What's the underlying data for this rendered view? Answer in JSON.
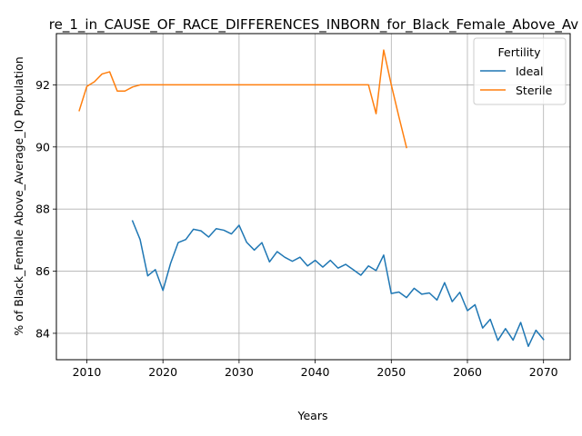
{
  "chart_data": {
    "type": "line",
    "title": "re_1_in_CAUSE_OF_RACE_DIFFERENCES_INBORN_for_Black_Female_Above_Av",
    "xlabel": "Years",
    "ylabel": "% of Black_Female Above_Average_IQ Population",
    "xlim": [
      2006,
      2073.5
    ],
    "ylim": [
      83.15,
      93.65
    ],
    "x_ticks": [
      2010,
      2020,
      2030,
      2040,
      2050,
      2060,
      2070
    ],
    "y_ticks": [
      84,
      86,
      88,
      90,
      92
    ],
    "grid": true,
    "legend": {
      "title": "Fertility",
      "placement": "top-right"
    },
    "series": [
      {
        "name": "Ideal",
        "color": "#1f77b4",
        "x": [
          2016,
          2017,
          2018,
          2019,
          2020,
          2021,
          2022,
          2023,
          2024,
          2025,
          2026,
          2027,
          2028,
          2029,
          2030,
          2031,
          2032,
          2033,
          2034,
          2035,
          2036,
          2037,
          2038,
          2039,
          2040,
          2041,
          2042,
          2043,
          2044,
          2045,
          2046,
          2047,
          2048,
          2049,
          2050,
          2051,
          2052,
          2053,
          2054,
          2055,
          2056,
          2057,
          2058,
          2059,
          2060,
          2061,
          2062,
          2063,
          2064,
          2065,
          2066,
          2067,
          2068,
          2069,
          2070
        ],
        "y": [
          87.62,
          87.02,
          85.85,
          86.05,
          85.38,
          86.25,
          86.92,
          87.02,
          87.35,
          87.3,
          87.1,
          87.37,
          87.32,
          87.2,
          87.48,
          86.93,
          86.68,
          86.92,
          86.3,
          86.63,
          86.45,
          86.32,
          86.45,
          86.17,
          86.35,
          86.13,
          86.35,
          86.1,
          86.22,
          86.05,
          85.87,
          86.17,
          86.02,
          86.52,
          85.28,
          85.33,
          85.15,
          85.45,
          85.26,
          85.3,
          85.07,
          85.63,
          85.02,
          85.32,
          84.73,
          84.92,
          84.17,
          84.45,
          83.77,
          84.15,
          83.78,
          84.35,
          83.58,
          84.1,
          83.8
        ]
      },
      {
        "name": "Sterile",
        "color": "#ff7f0e",
        "x": [
          2009,
          2010,
          2011,
          2012,
          2013,
          2014,
          2015,
          2016,
          2017,
          2018,
          2019,
          2020,
          2021,
          2022,
          2023,
          2024,
          2025,
          2026,
          2027,
          2028,
          2029,
          2030,
          2031,
          2032,
          2033,
          2034,
          2035,
          2036,
          2037,
          2038,
          2039,
          2040,
          2041,
          2042,
          2043,
          2044,
          2045,
          2046,
          2047,
          2048,
          2049,
          2050,
          2051,
          2052
        ],
        "y": [
          91.17,
          91.95,
          92.1,
          92.35,
          92.42,
          91.8,
          91.8,
          91.93,
          92.0,
          92.0,
          92.0,
          92.0,
          92.0,
          92.0,
          92.0,
          92.0,
          92.0,
          92.0,
          92.0,
          92.0,
          92.0,
          92.0,
          92.0,
          92.0,
          92.0,
          92.0,
          92.0,
          92.0,
          92.0,
          92.0,
          92.0,
          92.0,
          92.0,
          92.0,
          92.0,
          92.0,
          92.0,
          92.0,
          92.0,
          91.07,
          93.12,
          92.0,
          90.97,
          89.98
        ]
      }
    ]
  }
}
